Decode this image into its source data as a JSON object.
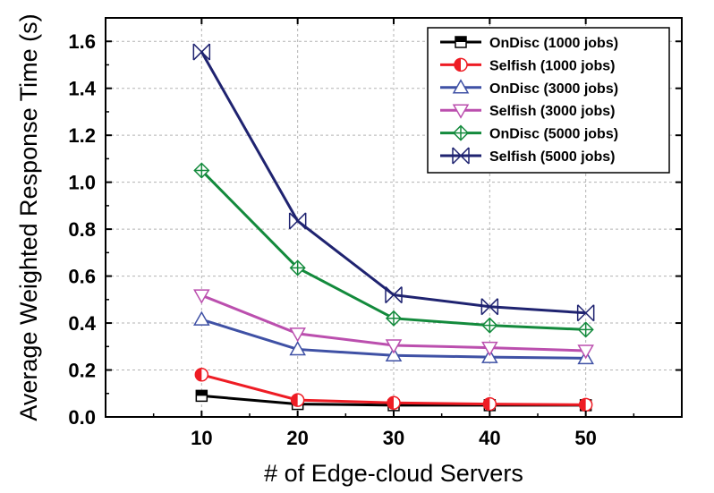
{
  "chart_data": {
    "type": "line",
    "title": "",
    "xlabel": "# of Edge-cloud Servers",
    "ylabel": "Average Weighted Response Time (s)",
    "x": [
      10,
      20,
      30,
      40,
      50
    ],
    "xlim": [
      0,
      60
    ],
    "ylim": [
      0,
      1.7
    ],
    "xticks": [
      "10",
      "20",
      "30",
      "40",
      "50"
    ],
    "yticks": [
      "0.0",
      "0.2",
      "0.4",
      "0.6",
      "0.8",
      "1.0",
      "1.2",
      "1.4",
      "1.6"
    ],
    "grid": true,
    "legend_position": "top-right",
    "series": [
      {
        "name": "OnDisc (1000 jobs)",
        "color": "#000000",
        "marker": "square-half",
        "values": [
          0.09,
          0.055,
          0.05,
          0.05,
          0.05
        ]
      },
      {
        "name": "Selfish (1000 jobs)",
        "color": "#ee1c24",
        "marker": "circle-half",
        "values": [
          0.18,
          0.072,
          0.06,
          0.055,
          0.052
        ]
      },
      {
        "name": "OnDisc (3000 jobs)",
        "color": "#3f51a5",
        "marker": "triangle-up",
        "values": [
          0.415,
          0.288,
          0.262,
          0.255,
          0.25
        ]
      },
      {
        "name": "Selfish (3000 jobs)",
        "color": "#bb4fae",
        "marker": "triangle-down",
        "values": [
          0.518,
          0.355,
          0.305,
          0.295,
          0.282
        ]
      },
      {
        "name": "OnDisc (5000 jobs)",
        "color": "#138a3c",
        "marker": "diamond-plus",
        "values": [
          1.05,
          0.635,
          0.42,
          0.39,
          0.372
        ]
      },
      {
        "name": "Selfish (5000 jobs)",
        "color": "#1f2370",
        "marker": "x-box",
        "values": [
          1.555,
          0.835,
          0.52,
          0.47,
          0.443
        ]
      }
    ]
  }
}
